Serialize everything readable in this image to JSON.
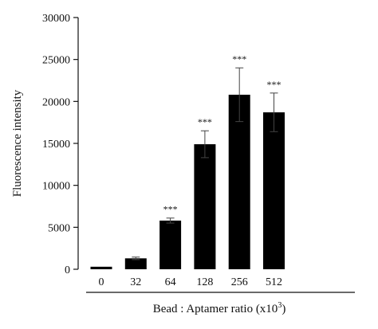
{
  "chart_data": {
    "type": "bar",
    "xlabel": "Bead : Aptamer ratio (x10",
    "xlabel_superscript": "3",
    "xlabel_suffix": ")",
    "ylabel": "Fluorescence intensity",
    "ylim": [
      0,
      30000
    ],
    "yticks": [
      "0",
      "5000",
      "10000",
      "15000",
      "20000",
      "25000",
      "30000"
    ],
    "ytick_values": [
      0,
      5000,
      10000,
      15000,
      20000,
      25000,
      30000
    ],
    "categories": [
      "0",
      "32",
      "64",
      "128",
      "256",
      "512"
    ],
    "values": [
      300,
      1300,
      5800,
      14900,
      20800,
      18700
    ],
    "errors": [
      0,
      150,
      300,
      1600,
      3200,
      2300
    ],
    "significance": [
      "",
      "",
      "***",
      "***",
      "***",
      "***"
    ],
    "bar_color": "#000000",
    "grid": false,
    "legend": "none"
  }
}
